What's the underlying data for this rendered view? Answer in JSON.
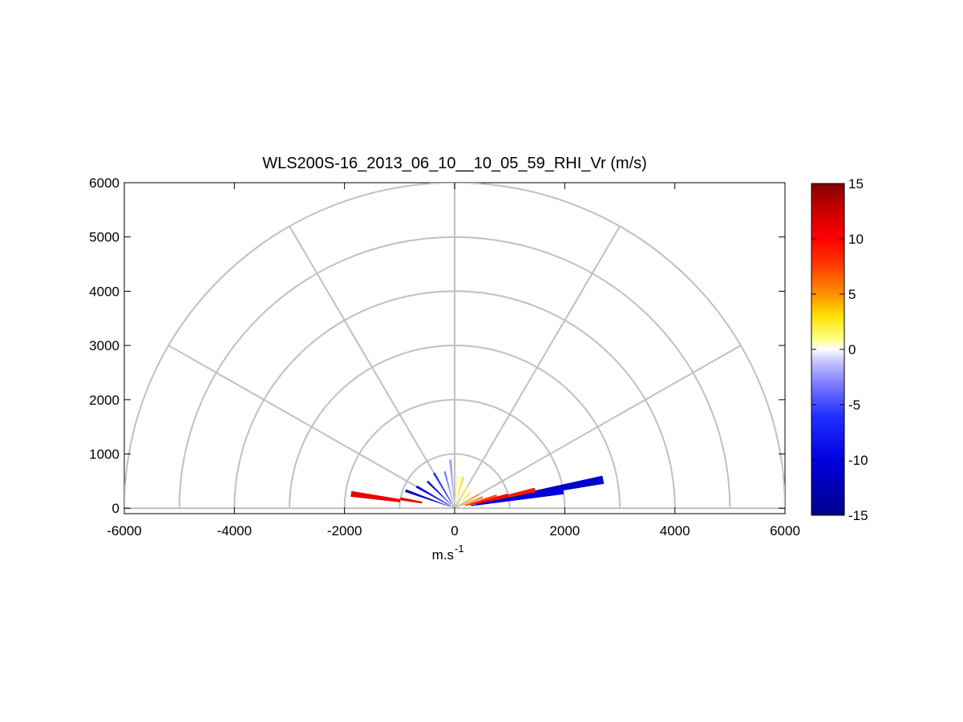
{
  "chart_data": {
    "type": "heatmap",
    "subtype": "polar-rhi-sector",
    "title": "WLS200S-16_2013_06_10__10_05_59_RHI_Vr (m/s)",
    "xlabel": "m.s",
    "xlabel_superscript": "-1",
    "ylabel": "",
    "xlim": [
      -6000,
      6000
    ],
    "ylim": [
      -100,
      6000
    ],
    "x_ticks": [
      -6000,
      -4000,
      -2000,
      0,
      2000,
      4000,
      6000
    ],
    "x_tick_labels": [
      "-6000",
      "-4000",
      "-2000",
      "0",
      "2000",
      "4000",
      "6000"
    ],
    "y_ticks": [
      0,
      1000,
      2000,
      3000,
      4000,
      5000,
      6000
    ],
    "y_tick_labels": [
      "0",
      "1000",
      "2000",
      "3000",
      "4000",
      "5000",
      "6000"
    ],
    "polar_grid": {
      "radii": [
        1000,
        2000,
        3000,
        4000,
        5000,
        6000
      ],
      "angles_deg": [
        0,
        30,
        60,
        90,
        120,
        150,
        180
      ],
      "color": "#c0c0c0"
    },
    "colorbar": {
      "range": [
        -15,
        15
      ],
      "ticks": [
        -15,
        -10,
        -5,
        0,
        5,
        10,
        15
      ],
      "tick_labels": [
        "-15",
        "-10",
        "-5",
        "0",
        "5",
        "10",
        "15"
      ],
      "stops": [
        {
          "v": -15,
          "color": "#00008b"
        },
        {
          "v": -10,
          "color": "#0000e0"
        },
        {
          "v": -6,
          "color": "#2030ff"
        },
        {
          "v": -3,
          "color": "#8080ff"
        },
        {
          "v": -1,
          "color": "#c8c8ff"
        },
        {
          "v": 0,
          "color": "#ffffff"
        },
        {
          "v": 1,
          "color": "#ffff80"
        },
        {
          "v": 3,
          "color": "#ffe000"
        },
        {
          "v": 5,
          "color": "#ff9000"
        },
        {
          "v": 8,
          "color": "#ff3000"
        },
        {
          "v": 10,
          "color": "#ff0000"
        },
        {
          "v": 13,
          "color": "#c00000"
        },
        {
          "v": 15,
          "color": "#800000"
        }
      ]
    },
    "scans": [
      {
        "elev_deg": 11,
        "r0": 400,
        "r1": 2750,
        "vr": -11
      },
      {
        "elev_deg": 9,
        "r0": 300,
        "r1": 2000,
        "vr": -10
      },
      {
        "elev_deg": 13,
        "r0": 300,
        "r1": 1500,
        "vr": 9
      },
      {
        "elev_deg": 14,
        "r0": 200,
        "r1": 1000,
        "vr": 10
      },
      {
        "elev_deg": 17,
        "r0": 200,
        "r1": 800,
        "vr": 7
      },
      {
        "elev_deg": 22,
        "r0": 150,
        "r1": 550,
        "vr": 6
      },
      {
        "elev_deg": 30,
        "r0": 100,
        "r1": 500,
        "vr": 5
      },
      {
        "elev_deg": 45,
        "r0": 100,
        "r1": 400,
        "vr": 3
      },
      {
        "elev_deg": 60,
        "r0": 100,
        "r1": 450,
        "vr": 2
      },
      {
        "elev_deg": 75,
        "r0": 100,
        "r1": 600,
        "vr": 3
      },
      {
        "elev_deg": 85,
        "r0": 100,
        "r1": 600,
        "vr": 1
      },
      {
        "elev_deg": 95,
        "r0": 100,
        "r1": 900,
        "vr": -2
      },
      {
        "elev_deg": 105,
        "r0": 100,
        "r1": 700,
        "vr": -3
      },
      {
        "elev_deg": 120,
        "r0": 100,
        "r1": 750,
        "vr": -6
      },
      {
        "elev_deg": 135,
        "r0": 100,
        "r1": 700,
        "vr": -9
      },
      {
        "elev_deg": 150,
        "r0": 100,
        "r1": 800,
        "vr": -10
      },
      {
        "elev_deg": 160,
        "r0": 100,
        "r1": 950,
        "vr": -11
      },
      {
        "elev_deg": 170,
        "r0": 600,
        "r1": 1000,
        "vr": 11
      },
      {
        "elev_deg": 172,
        "r0": 1000,
        "r1": 1900,
        "vr": 11
      }
    ]
  }
}
